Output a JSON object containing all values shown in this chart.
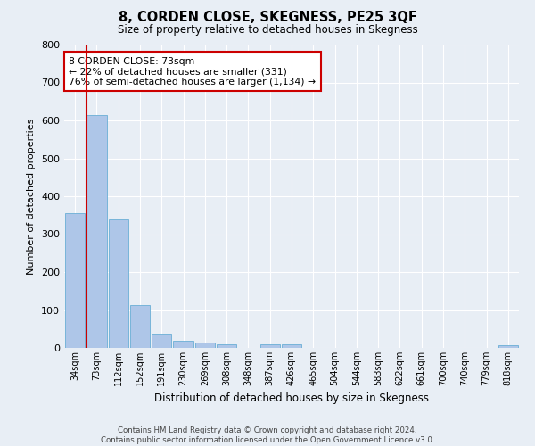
{
  "title": "8, CORDEN CLOSE, SKEGNESS, PE25 3QF",
  "subtitle": "Size of property relative to detached houses in Skegness",
  "xlabel": "Distribution of detached houses by size in Skegness",
  "ylabel": "Number of detached properties",
  "bar_labels": [
    "34sqm",
    "73sqm",
    "112sqm",
    "152sqm",
    "191sqm",
    "230sqm",
    "269sqm",
    "308sqm",
    "348sqm",
    "387sqm",
    "426sqm",
    "465sqm",
    "504sqm",
    "544sqm",
    "583sqm",
    "622sqm",
    "661sqm",
    "700sqm",
    "740sqm",
    "779sqm",
    "818sqm"
  ],
  "bar_values": [
    355,
    615,
    338,
    113,
    38,
    20,
    15,
    10,
    0,
    10,
    10,
    0,
    0,
    0,
    0,
    0,
    0,
    0,
    0,
    0,
    8
  ],
  "bar_color": "#aec6e8",
  "bar_edge_color": "#6aaed6",
  "highlight_bar_index": 1,
  "highlight_color": "#cc0000",
  "annotation_text": "8 CORDEN CLOSE: 73sqm\n← 22% of detached houses are smaller (331)\n76% of semi-detached houses are larger (1,134) →",
  "annotation_box_color": "#ffffff",
  "annotation_box_edge": "#cc0000",
  "ylim": [
    0,
    800
  ],
  "yticks": [
    0,
    100,
    200,
    300,
    400,
    500,
    600,
    700,
    800
  ],
  "background_color": "#e8eef5",
  "grid_color": "#ffffff",
  "footer_line1": "Contains HM Land Registry data © Crown copyright and database right 2024.",
  "footer_line2": "Contains public sector information licensed under the Open Government Licence v3.0."
}
